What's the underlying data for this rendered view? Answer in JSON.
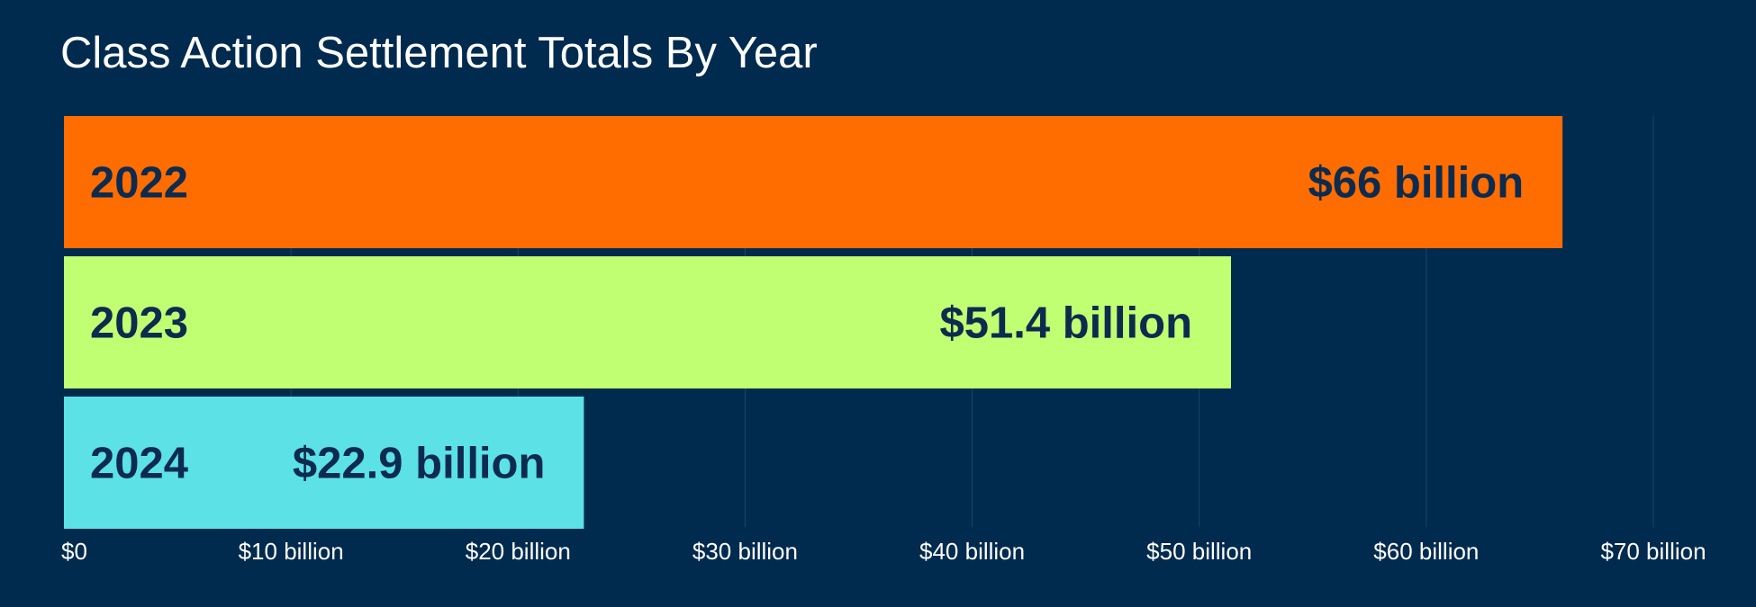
{
  "chart_data": {
    "type": "bar",
    "orientation": "horizontal",
    "title": "Class Action Settlement Totals By Year",
    "categories": [
      "2022",
      "2023",
      "2024"
    ],
    "values": [
      66,
      51.4,
      22.9
    ],
    "value_labels": [
      "$66 billion",
      "$51.4 billion",
      "$22.9 billion"
    ],
    "colors": [
      "#ff6c00",
      "#c1ff72",
      "#5ce1e6"
    ],
    "xlim": [
      0,
      70
    ],
    "xticks": [
      0,
      10,
      20,
      30,
      40,
      50,
      60,
      70
    ],
    "xtick_labels": [
      "$0",
      "$10 billion",
      "$20 billion",
      "$30 billion",
      "$40 billion",
      "$50 billion",
      "$60 billion",
      "$70 billion"
    ],
    "unit": "billion USD",
    "grid": true,
    "xlabel": "",
    "ylabel": ""
  },
  "theme": {
    "background": "#002a4e",
    "grid_color": "#1e4468",
    "label_color": "#0d2b4e",
    "tick_color": "#ffffff"
  }
}
